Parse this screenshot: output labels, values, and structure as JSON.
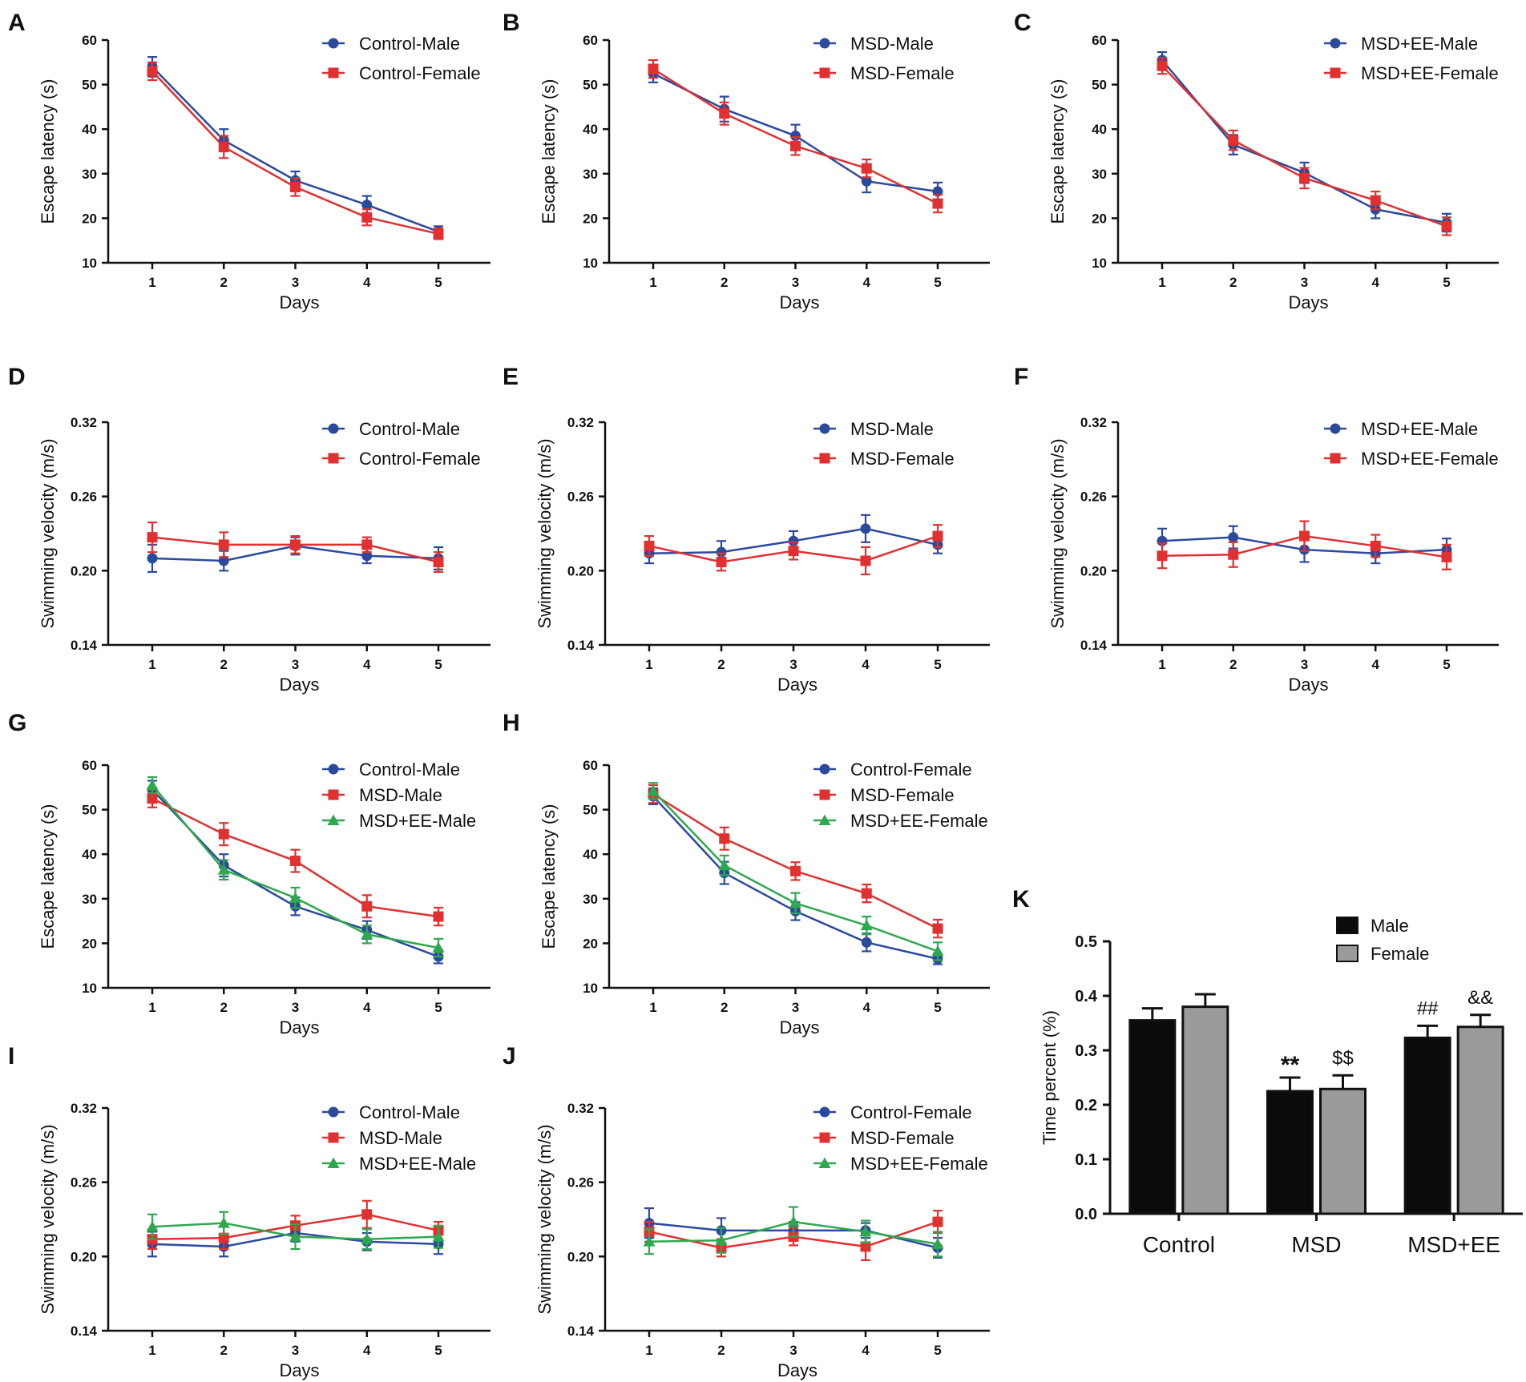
{
  "colors": {
    "blue": "#2b4a9e",
    "red": "#e03030",
    "green": "#2ea84f",
    "black": "#0b0b0b",
    "gray": "#9a9a9a"
  },
  "chart_data": [
    {
      "id": "A",
      "type": "line",
      "xlabel": "Days",
      "ylabel": "Escape latency (s)",
      "ylim": [
        10,
        60
      ],
      "yticks": [
        "10",
        "20",
        "30",
        "40",
        "50",
        "60"
      ],
      "x": [
        "1",
        "2",
        "3",
        "4",
        "5"
      ],
      "series": [
        {
          "name": "Control-Male",
          "color": "blue",
          "marker": "circle",
          "values": [
            54,
            37.5,
            28.5,
            23,
            17
          ],
          "err": [
            2.2,
            2.5,
            2,
            2,
            1.2
          ]
        },
        {
          "name": "Control-Female",
          "color": "red",
          "marker": "square",
          "values": [
            53,
            36,
            27,
            20.2,
            16.5
          ],
          "err": [
            2,
            2.5,
            2,
            1.8,
            1.2
          ]
        }
      ]
    },
    {
      "id": "B",
      "type": "line",
      "xlabel": "Days",
      "ylabel": "Escape latency (s)",
      "ylim": [
        10,
        60
      ],
      "yticks": [
        "10",
        "20",
        "30",
        "40",
        "50",
        "60"
      ],
      "x": [
        "1",
        "2",
        "3",
        "4",
        "5"
      ],
      "series": [
        {
          "name": "MSD-Male",
          "color": "blue",
          "marker": "circle",
          "values": [
            52.5,
            44.5,
            38.5,
            28.3,
            26
          ],
          "err": [
            2,
            2.8,
            2.5,
            2.5,
            2
          ]
        },
        {
          "name": "MSD-Female",
          "color": "red",
          "marker": "square",
          "values": [
            53.5,
            43.5,
            36.2,
            31.2,
            23.3
          ],
          "err": [
            2,
            2.5,
            2,
            2,
            2
          ]
        }
      ]
    },
    {
      "id": "C",
      "type": "line",
      "xlabel": "Days",
      "ylabel": "Escape latency (s)",
      "ylim": [
        10,
        60
      ],
      "yticks": [
        "10",
        "20",
        "30",
        "40",
        "50",
        "60"
      ],
      "x": [
        "1",
        "2",
        "3",
        "4",
        "5"
      ],
      "series": [
        {
          "name": "MSD+EE-Male",
          "color": "blue",
          "marker": "circle",
          "values": [
            55.5,
            36.5,
            30.2,
            22,
            19
          ],
          "err": [
            1.8,
            2.2,
            2.3,
            2,
            2
          ]
        },
        {
          "name": "MSD+EE-Female",
          "color": "red",
          "marker": "square",
          "values": [
            54.2,
            37.5,
            29,
            24,
            18.2
          ],
          "err": [
            1.8,
            2.2,
            2.3,
            2,
            2
          ]
        }
      ]
    },
    {
      "id": "D",
      "type": "line",
      "xlabel": "Days",
      "ylabel": "Swimming velocity (m/s)",
      "ylim": [
        0.14,
        0.32
      ],
      "yticks": [
        "0.14",
        "0.20",
        "0.26",
        "0.32"
      ],
      "x": [
        "1",
        "2",
        "3",
        "4",
        "5"
      ],
      "series": [
        {
          "name": "Control-Male",
          "color": "blue",
          "marker": "circle",
          "values": [
            0.21,
            0.208,
            0.22,
            0.212,
            0.21
          ],
          "err": [
            0.011,
            0.008,
            0.007,
            0.006,
            0.009
          ]
        },
        {
          "name": "Control-Female",
          "color": "red",
          "marker": "square",
          "values": [
            0.227,
            0.221,
            0.221,
            0.221,
            0.207
          ],
          "err": [
            0.012,
            0.01,
            0.007,
            0.006,
            0.008
          ]
        }
      ]
    },
    {
      "id": "E",
      "type": "line",
      "xlabel": "Days",
      "ylabel": "Swimming velocity (m/s)",
      "ylim": [
        0.14,
        0.32
      ],
      "yticks": [
        "0.14",
        "0.20",
        "0.26",
        "0.32"
      ],
      "x": [
        "1",
        "2",
        "3",
        "4",
        "5"
      ],
      "series": [
        {
          "name": "MSD-Male",
          "color": "blue",
          "marker": "circle",
          "values": [
            0.214,
            0.215,
            0.224,
            0.234,
            0.221
          ],
          "err": [
            0.008,
            0.009,
            0.008,
            0.011,
            0.007
          ]
        },
        {
          "name": "MSD-Female",
          "color": "red",
          "marker": "square",
          "values": [
            0.22,
            0.207,
            0.216,
            0.208,
            0.228
          ],
          "err": [
            0.008,
            0.007,
            0.007,
            0.011,
            0.009
          ]
        }
      ]
    },
    {
      "id": "F",
      "type": "line",
      "xlabel": "Days",
      "ylabel": "Swimming velocity (m/s)",
      "ylim": [
        0.14,
        0.32
      ],
      "yticks": [
        "0.14",
        "0.20",
        "0.26",
        "0.32"
      ],
      "x": [
        "1",
        "2",
        "3",
        "4",
        "5"
      ],
      "series": [
        {
          "name": "MSD+EE-Male",
          "color": "blue",
          "marker": "circle",
          "values": [
            0.224,
            0.227,
            0.217,
            0.214,
            0.217
          ],
          "err": [
            0.01,
            0.009,
            0.01,
            0.008,
            0.009
          ]
        },
        {
          "name": "MSD+EE-Female",
          "color": "red",
          "marker": "square",
          "values": [
            0.212,
            0.213,
            0.228,
            0.22,
            0.211
          ],
          "err": [
            0.01,
            0.01,
            0.012,
            0.009,
            0.01
          ]
        }
      ]
    },
    {
      "id": "G",
      "type": "line",
      "xlabel": "Days",
      "ylabel": "Escape latency (s)",
      "ylim": [
        10,
        60
      ],
      "yticks": [
        "10",
        "20",
        "30",
        "40",
        "50",
        "60"
      ],
      "x": [
        "1",
        "2",
        "3",
        "4",
        "5"
      ],
      "series": [
        {
          "name": "Control-Male",
          "color": "blue",
          "marker": "circle",
          "values": [
            54.5,
            37.5,
            28.3,
            23,
            17
          ],
          "err": [
            2,
            2.5,
            2,
            2,
            1.5
          ]
        },
        {
          "name": "MSD-Male",
          "color": "red",
          "marker": "square",
          "values": [
            52.5,
            44.5,
            38.5,
            28.3,
            26
          ],
          "err": [
            2,
            2.5,
            2.5,
            2.5,
            2
          ]
        },
        {
          "name": "MSD+EE-Male",
          "color": "green",
          "marker": "triangle",
          "values": [
            55.5,
            36.5,
            30.2,
            22,
            19
          ],
          "err": [
            1.8,
            2.2,
            2.3,
            2,
            2
          ]
        }
      ]
    },
    {
      "id": "H",
      "type": "line",
      "xlabel": "Days",
      "ylabel": "Escape latency (s)",
      "ylim": [
        10,
        60
      ],
      "yticks": [
        "10",
        "20",
        "30",
        "40",
        "50",
        "60"
      ],
      "x": [
        "1",
        "2",
        "3",
        "4",
        "5"
      ],
      "series": [
        {
          "name": "Control-Female",
          "color": "blue",
          "marker": "circle",
          "values": [
            53,
            35.8,
            27.2,
            20.2,
            16.5
          ],
          "err": [
            1.8,
            2.5,
            2,
            2,
            1.2
          ]
        },
        {
          "name": "MSD-Female",
          "color": "red",
          "marker": "square",
          "values": [
            53.5,
            43.5,
            36.2,
            31.2,
            23.3
          ],
          "err": [
            2,
            2.5,
            2,
            2,
            2
          ]
        },
        {
          "name": "MSD+EE-Female",
          "color": "green",
          "marker": "triangle",
          "values": [
            54.2,
            37.5,
            29,
            24,
            18.2
          ],
          "err": [
            1.8,
            2.2,
            2.3,
            2,
            2
          ]
        }
      ]
    },
    {
      "id": "I",
      "type": "line",
      "xlabel": "Days",
      "ylabel": "Swimming velocity (m/s)",
      "ylim": [
        0.14,
        0.32
      ],
      "yticks": [
        "0.14",
        "0.20",
        "0.26",
        "0.32"
      ],
      "x": [
        "1",
        "2",
        "3",
        "4",
        "5"
      ],
      "series": [
        {
          "name": "Control-Male",
          "color": "blue",
          "marker": "circle",
          "values": [
            0.21,
            0.208,
            0.219,
            0.212,
            0.21
          ],
          "err": [
            0.01,
            0.008,
            0.007,
            0.007,
            0.008
          ]
        },
        {
          "name": "MSD-Male",
          "color": "red",
          "marker": "square",
          "values": [
            0.214,
            0.215,
            0.225,
            0.234,
            0.221
          ],
          "err": [
            0.008,
            0.009,
            0.008,
            0.011,
            0.007
          ]
        },
        {
          "name": "MSD+EE-Male",
          "color": "green",
          "marker": "triangle",
          "values": [
            0.224,
            0.227,
            0.216,
            0.214,
            0.216
          ],
          "err": [
            0.01,
            0.009,
            0.01,
            0.008,
            0.009
          ]
        }
      ]
    },
    {
      "id": "J",
      "type": "line",
      "xlabel": "Days",
      "ylabel": "Swimming velocity (m/s)",
      "ylim": [
        0.14,
        0.32
      ],
      "yticks": [
        "0.14",
        "0.20",
        "0.26",
        "0.32"
      ],
      "x": [
        "1",
        "2",
        "3",
        "4",
        "5"
      ],
      "series": [
        {
          "name": "Control-Female",
          "color": "blue",
          "marker": "circle",
          "values": [
            0.227,
            0.221,
            0.221,
            0.221,
            0.207
          ],
          "err": [
            0.012,
            0.01,
            0.007,
            0.006,
            0.008
          ]
        },
        {
          "name": "MSD-Female",
          "color": "red",
          "marker": "square",
          "values": [
            0.22,
            0.207,
            0.216,
            0.208,
            0.228
          ],
          "err": [
            0.008,
            0.007,
            0.007,
            0.011,
            0.009
          ]
        },
        {
          "name": "MSD+EE-Female",
          "color": "green",
          "marker": "triangle",
          "values": [
            0.212,
            0.213,
            0.228,
            0.22,
            0.21
          ],
          "err": [
            0.01,
            0.01,
            0.012,
            0.009,
            0.01
          ]
        }
      ]
    },
    {
      "id": "K",
      "type": "bar",
      "ylabel": "Time percent (%)",
      "ylim": [
        0,
        0.5
      ],
      "yticks": [
        "0.0",
        "0.1",
        "0.2",
        "0.3",
        "0.4",
        "0.5"
      ],
      "categories": [
        "Control",
        "MSD",
        "MSD+EE"
      ],
      "series": [
        {
          "name": "Male",
          "color": "black",
          "values": [
            0.355,
            0.225,
            0.323
          ],
          "err": [
            0.022,
            0.025,
            0.022
          ]
        },
        {
          "name": "Female",
          "color": "gray",
          "values": [
            0.38,
            0.229,
            0.343
          ],
          "err": [
            0.023,
            0.025,
            0.022
          ]
        }
      ],
      "annotations": [
        [
          "",
          "",
          "**",
          "$$",
          "##",
          "&&"
        ]
      ]
    }
  ]
}
